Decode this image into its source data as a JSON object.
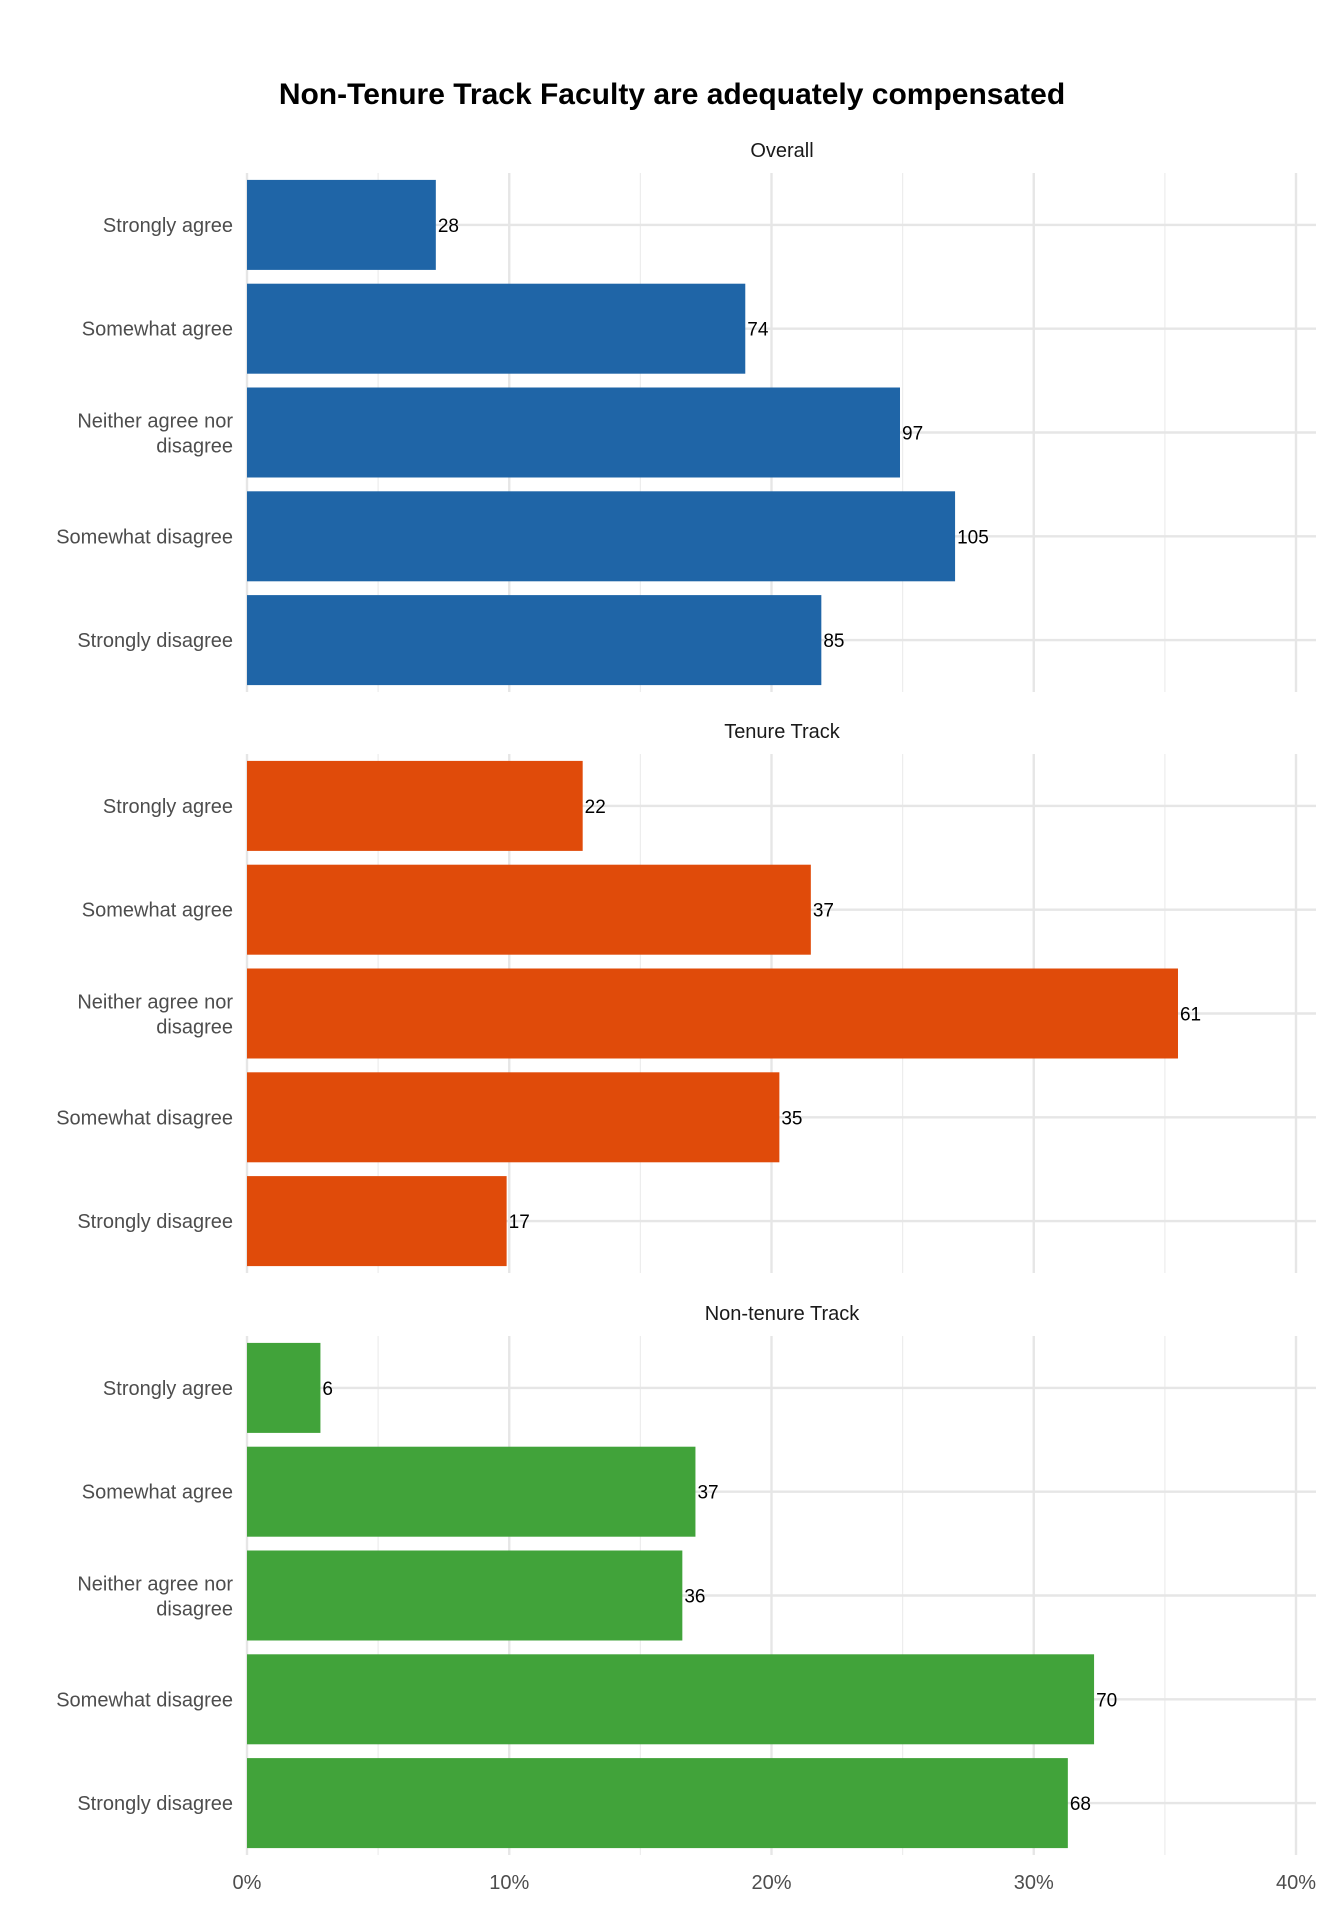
{
  "chart_data": {
    "type": "bar",
    "orientation": "horizontal",
    "title": "Non-Tenure Track Faculty are adequately compensated",
    "xlabel": "",
    "ylabel": "",
    "xlim": [
      0,
      0.4
    ],
    "x_ticks": [
      0,
      0.1,
      0.2,
      0.3,
      0.4
    ],
    "x_tick_labels": [
      "0%",
      "10%",
      "20%",
      "30%",
      "40%"
    ],
    "grid": true,
    "categories": [
      "Strongly agree",
      "Somewhat agree",
      "Neither agree nor disagree",
      "Somewhat disagree",
      "Strongly disagree"
    ],
    "facets": [
      {
        "name": "Overall",
        "color": "#1f65a7",
        "counts": [
          28,
          74,
          97,
          105,
          85
        ],
        "proportions": [
          0.072,
          0.19,
          0.249,
          0.27,
          0.219
        ]
      },
      {
        "name": "Tenure Track",
        "color": "#e04b0a",
        "counts": [
          22,
          37,
          61,
          35,
          17
        ],
        "proportions": [
          0.128,
          0.215,
          0.355,
          0.203,
          0.099
        ]
      },
      {
        "name": "Non-tenure Track",
        "color": "#41a33a",
        "counts": [
          6,
          37,
          36,
          70,
          68
        ],
        "proportions": [
          0.028,
          0.171,
          0.166,
          0.323,
          0.313
        ]
      }
    ]
  }
}
